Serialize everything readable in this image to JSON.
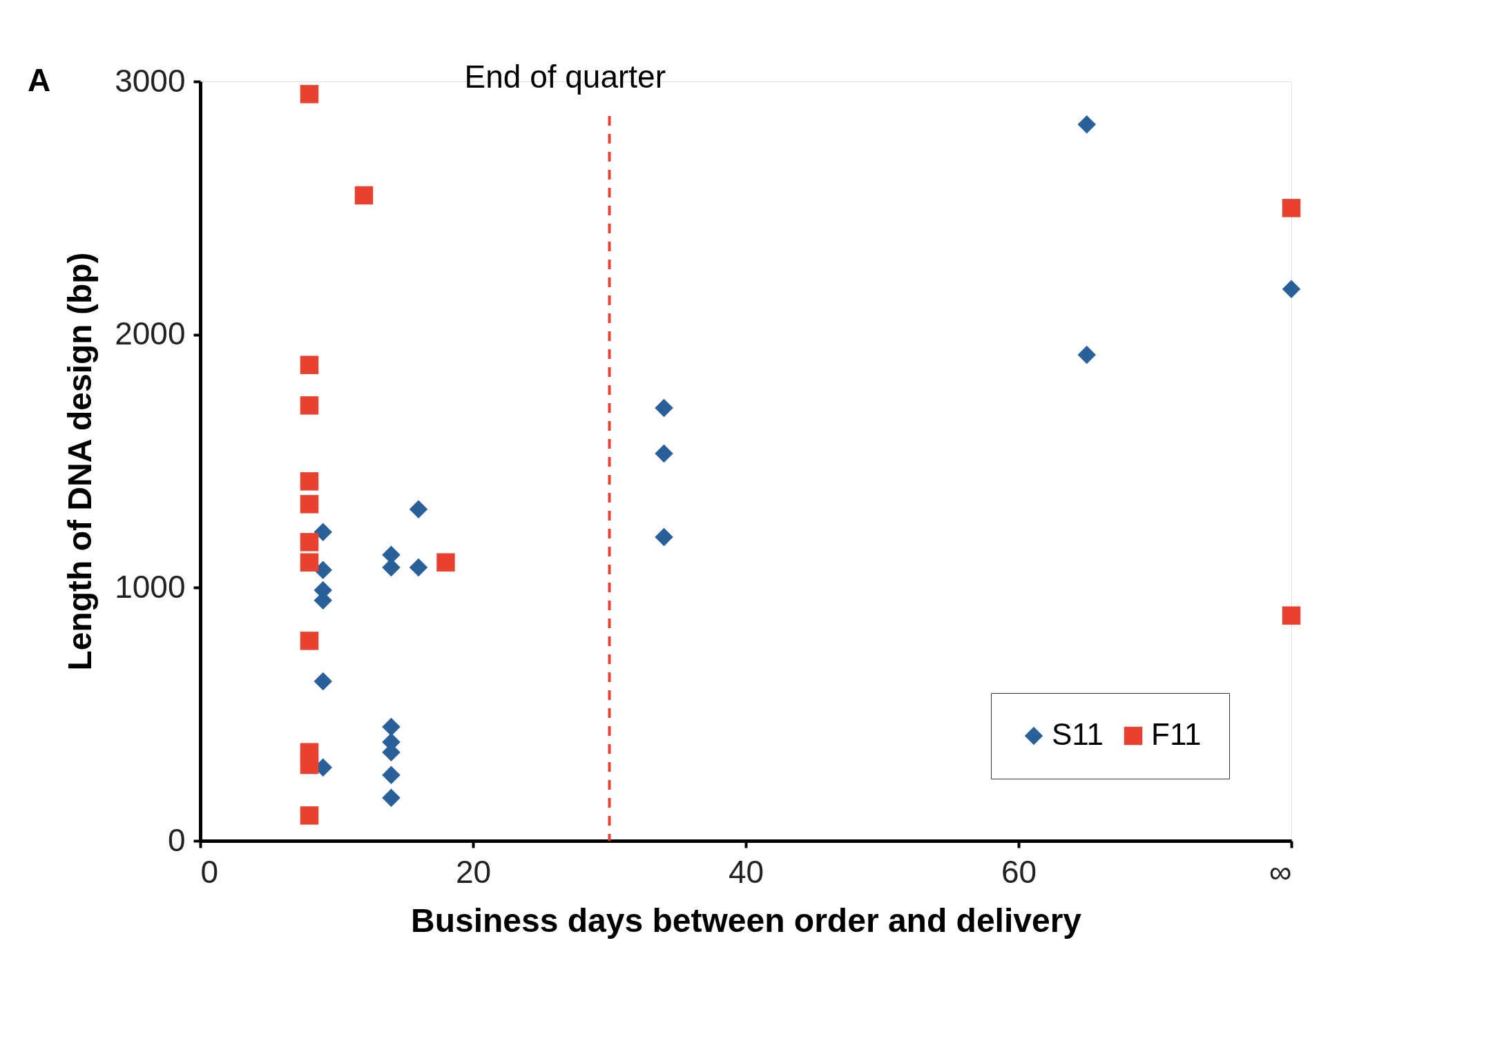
{
  "chart_data": {
    "type": "scatter",
    "xlabel": "Business days between order and delivery",
    "ylabel": "Length of DNA design (bp)",
    "xlim": [
      0,
      80
    ],
    "xticks": [
      0,
      20,
      40,
      60,
      {
        "value": 80,
        "label": "∞"
      }
    ],
    "ylim": [
      0,
      3000
    ],
    "yticks": [
      0,
      1000,
      2000,
      3000
    ],
    "grid": false,
    "legend": "bottom right",
    "annotations": [
      "A"
    ],
    "ref_lines": [
      {
        "axis": "x",
        "value": 30,
        "label": "End of quarter",
        "color": "#e8412f",
        "line_style": "dashed"
      }
    ],
    "series": [
      {
        "name": "S11",
        "color": "#2a6099",
        "marker": "diamond",
        "x": [
          9,
          9,
          9,
          9,
          9,
          9,
          14,
          14,
          14,
          14,
          14,
          14,
          14,
          16,
          16,
          34,
          34,
          34,
          65,
          65,
          80
        ],
        "values": [
          1220,
          1070,
          990,
          950,
          630,
          290,
          1130,
          1080,
          450,
          390,
          350,
          260,
          170,
          1310,
          1080,
          1710,
          1530,
          1200,
          2830,
          1920,
          2180
        ]
      },
      {
        "name": "F11",
        "color": "#e8412f",
        "marker": "square",
        "x": [
          8,
          8,
          8,
          8,
          8,
          8,
          8,
          8,
          8,
          8,
          8,
          12,
          18,
          80,
          80
        ],
        "values": [
          2950,
          1880,
          1720,
          1420,
          1330,
          1180,
          1100,
          790,
          350,
          300,
          100,
          2550,
          1100,
          2500,
          890
        ]
      }
    ]
  }
}
